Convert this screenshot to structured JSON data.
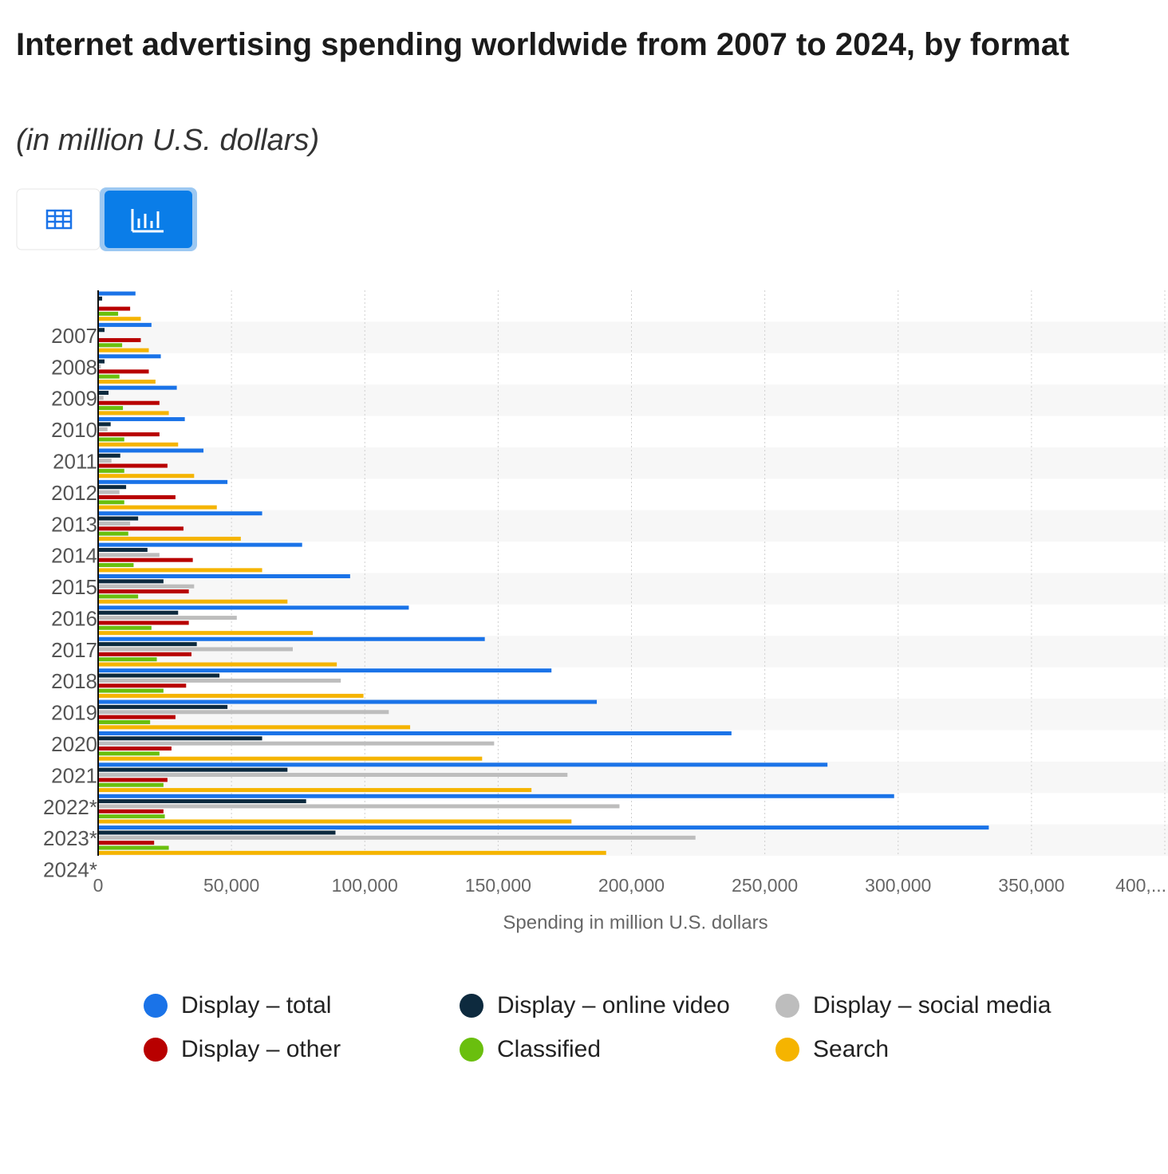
{
  "chart_data": {
    "type": "bar",
    "orientation": "horizontal",
    "title": "Internet advertising spending worldwide from 2007 to 2024, by format",
    "subtitle": "(in million U.S. dollars)",
    "x_label": "Spending in million U.S. dollars",
    "categories": [
      "2007",
      "2008",
      "2009",
      "2010",
      "2011",
      "2012",
      "2013",
      "2014",
      "2015",
      "2016",
      "2017",
      "2018",
      "2019",
      "2020",
      "2021",
      "2022*",
      "2023*",
      "2024*"
    ],
    "series": [
      {
        "name": "Display – total",
        "color": "#1a73e8",
        "values": [
          14000,
          20000,
          23500,
          29500,
          32500,
          39500,
          48500,
          61500,
          76500,
          94500,
          116500,
          145000,
          170000,
          187000,
          237500,
          273500,
          298500,
          334000
        ]
      },
      {
        "name": "Display – online video",
        "color": "#0d2a3e",
        "values": [
          1500,
          2400,
          2400,
          3900,
          4700,
          8300,
          10500,
          15000,
          18500,
          24500,
          30000,
          37000,
          45500,
          48500,
          61500,
          71000,
          78000,
          89000
        ]
      },
      {
        "name": "Display – social media",
        "color": "#bdbdbd",
        "values": [
          0,
          0,
          1000,
          2000,
          3500,
          5000,
          8000,
          12000,
          23000,
          36000,
          52000,
          73000,
          91000,
          109000,
          148500,
          176000,
          195500,
          224000
        ]
      },
      {
        "name": "Display – other",
        "color": "#b80000",
        "values": [
          12000,
          16000,
          19000,
          23000,
          23000,
          26000,
          29000,
          32000,
          35500,
          34000,
          34000,
          35000,
          33000,
          29000,
          27500,
          26000,
          24500,
          21000
        ]
      },
      {
        "name": "Classified",
        "color": "#6abf0e",
        "values": [
          7500,
          9000,
          8000,
          9300,
          9800,
          9800,
          9800,
          11300,
          13300,
          15000,
          20000,
          22000,
          24500,
          19500,
          23000,
          24500,
          25000,
          26500
        ]
      },
      {
        "name": "Search",
        "color": "#f5b400",
        "values": [
          16000,
          19000,
          21500,
          26500,
          30000,
          36000,
          44500,
          53500,
          61500,
          71000,
          80500,
          89500,
          99500,
          117000,
          144000,
          162500,
          177500,
          190500
        ]
      }
    ],
    "xlim": [
      0,
      400000
    ],
    "xticks": [
      0,
      {
        "value": 50000,
        "label": "50,000"
      },
      {
        "value": 100000,
        "label": "100,000"
      },
      {
        "value": 150000,
        "label": "150,000"
      },
      {
        "value": 200000,
        "label": "200,000"
      },
      {
        "value": 250000,
        "label": "250,000"
      },
      {
        "value": 300000,
        "label": "300,000"
      },
      {
        "value": 350000,
        "label": "350,000"
      },
      {
        "value": 400000,
        "label": "400,..."
      }
    ],
    "grid": true,
    "legend": "bottom"
  }
}
